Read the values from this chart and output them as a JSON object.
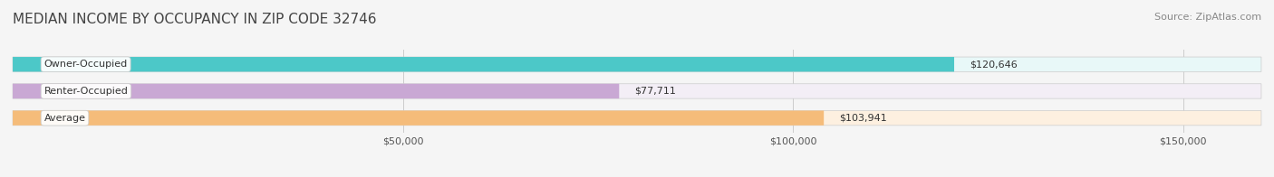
{
  "title": "MEDIAN INCOME BY OCCUPANCY IN ZIP CODE 32746",
  "source": "Source: ZipAtlas.com",
  "categories": [
    "Owner-Occupied",
    "Renter-Occupied",
    "Average"
  ],
  "values": [
    120646,
    77711,
    103941
  ],
  "bar_colors": [
    "#4CC8C8",
    "#C9A8D4",
    "#F5BC7A"
  ],
  "bar_bg_colors": [
    "#E8F8F8",
    "#F3EEF6",
    "#FDF0E0"
  ],
  "label_texts": [
    "$120,646",
    "$77,711",
    "$103,941"
  ],
  "tick_labels": [
    "$50,000",
    "$100,000",
    "$150,000"
  ],
  "tick_values": [
    50000,
    100000,
    150000
  ],
  "xlim": [
    0,
    160000
  ],
  "title_fontsize": 11,
  "source_fontsize": 8,
  "bar_label_fontsize": 8,
  "cat_label_fontsize": 8,
  "tick_fontsize": 8,
  "background_color": "#F5F5F5",
  "bar_height": 0.55
}
